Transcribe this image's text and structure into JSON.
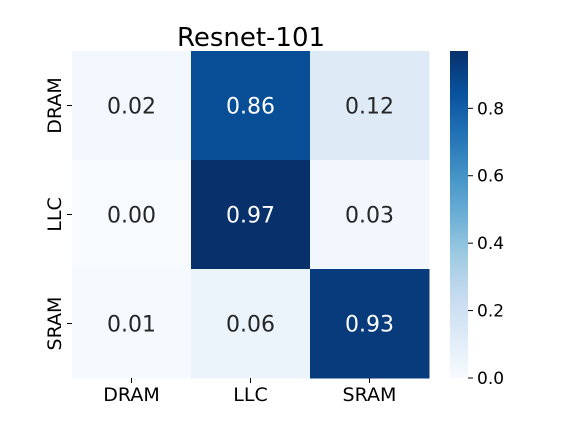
{
  "chart_data": {
    "type": "heatmap",
    "title": "Resnet-101",
    "x_categories": [
      "DRAM",
      "LLC",
      "SRAM"
    ],
    "y_categories": [
      "DRAM",
      "LLC",
      "SRAM"
    ],
    "values": [
      [
        0.02,
        0.86,
        0.12
      ],
      [
        0.0,
        0.97,
        0.03
      ],
      [
        0.01,
        0.06,
        0.93
      ]
    ],
    "value_labels": [
      [
        "0.02",
        "0.86",
        "0.12"
      ],
      [
        "0.00",
        "0.97",
        "0.03"
      ],
      [
        "0.01",
        "0.06",
        "0.93"
      ]
    ],
    "colormap": "Blues",
    "colorbar": {
      "range": [
        0.0,
        0.97
      ],
      "ticks": [
        0.0,
        0.2,
        0.4,
        0.6,
        0.8
      ],
      "tick_labels": [
        "0.0",
        "0.2",
        "0.4",
        "0.6",
        "0.8"
      ]
    },
    "colors": {
      "low": "#f7fbff",
      "high": "#08306b",
      "label_dark": "#262626",
      "label_light": "#ffffff"
    }
  }
}
